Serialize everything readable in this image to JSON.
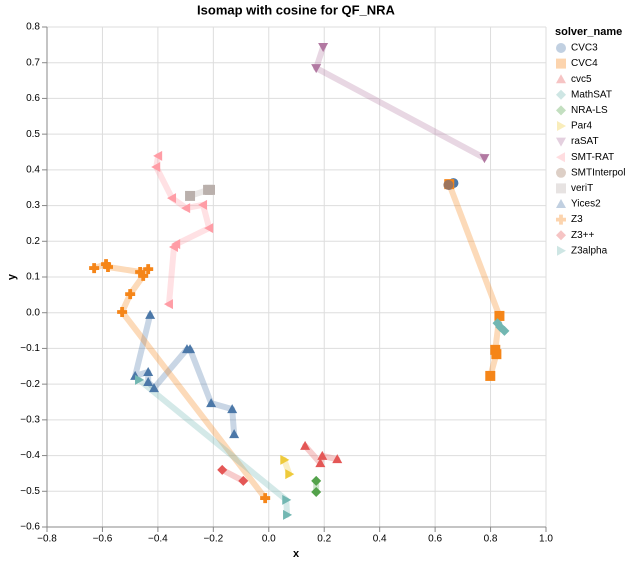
{
  "chart_data": {
    "type": "scatter",
    "title": "Isomap with cosine for QF_NRA",
    "x_label": "x",
    "y_label": "y",
    "legend_title": "solver_name",
    "grid": true,
    "legend": "right",
    "trail": true,
    "xlim": [
      -0.8,
      1.0
    ],
    "xticks": [
      {
        "value": -0.8,
        "label": "−0.8"
      },
      {
        "value": -0.6,
        "label": "−0.6"
      },
      {
        "value": -0.4,
        "label": "−0.4"
      },
      {
        "value": -0.2,
        "label": "−0.2"
      },
      {
        "value": 0,
        "label": "0.0"
      },
      0.2,
      0.4,
      0.6,
      0.8,
      {
        "value": 1,
        "label": "1.0"
      }
    ],
    "ylim": [
      -0.6,
      0.8
    ],
    "yticks": [
      {
        "value": -0.6,
        "label": "−0.6"
      },
      {
        "value": -0.5,
        "label": "−0.5"
      },
      {
        "value": -0.4,
        "label": "−0.4"
      },
      {
        "value": -0.3,
        "label": "−0.3"
      },
      {
        "value": -0.2,
        "label": "−0.2"
      },
      {
        "value": -0.1,
        "label": "−0.1"
      },
      {
        "value": 0,
        "label": "0.0"
      },
      0.1,
      0.2,
      0.3,
      0.4,
      0.5,
      0.6,
      0.7,
      0.8
    ],
    "series": [
      {
        "name": "CVC3",
        "color": "#4c78a8",
        "shape": "circle",
        "x": [
          0.651,
          0.666
        ],
        "values": [
          0.358,
          0.363
        ]
      },
      {
        "name": "CVC4",
        "color": "#f58518",
        "shape": "square",
        "x": [
          0.651,
          0.832,
          0.817,
          0.821,
          0.799
        ],
        "values": [
          0.36,
          -0.009,
          -0.104,
          -0.116,
          -0.177
        ]
      },
      {
        "name": "cvc5",
        "color": "#e45756",
        "shape": "triangle-up",
        "x": [
          0.131,
          0.186,
          0.193,
          0.247
        ],
        "values": [
          -0.373,
          -0.421,
          -0.401,
          -0.41
        ]
      },
      {
        "name": "MathSAT",
        "color": "#72b7b2",
        "shape": "diamond",
        "x": [
          0.825,
          0.835,
          0.85
        ],
        "values": [
          -0.029,
          -0.04,
          -0.051
        ]
      },
      {
        "name": "NRA-LS",
        "color": "#54a24b",
        "shape": "diamond",
        "x": [
          0.171,
          0.171
        ],
        "values": [
          -0.471,
          -0.502
        ]
      },
      {
        "name": "Par4",
        "color": "#eeca3b",
        "shape": "triangle-right",
        "x": [
          0.056,
          0.074
        ],
        "values": [
          -0.412,
          -0.452
        ]
      },
      {
        "name": "raSAT",
        "color": "#b279a2",
        "shape": "triangle-down",
        "x": [
          0.196,
          0.171,
          0.778
        ],
        "values": [
          0.744,
          0.685,
          0.433
        ]
      },
      {
        "name": "SMT-RAT",
        "color": "#ff9da6",
        "shape": "triangle-left",
        "x": [
          -0.399,
          -0.406,
          -0.349,
          -0.298,
          -0.237,
          -0.215,
          -0.334,
          -0.342,
          -0.36
        ],
        "values": [
          0.439,
          0.408,
          0.321,
          0.293,
          0.302,
          0.237,
          0.192,
          0.184,
          0.024
        ]
      },
      {
        "name": "SMTInterpol",
        "color": "#9d755d",
        "shape": "circle",
        "x": [
          0.648
        ],
        "values": [
          0.358
        ]
      },
      {
        "name": "veriT",
        "color": "#bab0ac",
        "shape": "square",
        "x": [
          -0.284,
          -0.219,
          -0.212
        ],
        "values": [
          0.327,
          0.344,
          0.344
        ]
      },
      {
        "name": "Yices2",
        "color": "#4c78a8",
        "shape": "triangle-up",
        "x": [
          -0.428,
          -0.482,
          -0.435,
          -0.435,
          -0.414,
          -0.295,
          -0.284,
          -0.208,
          -0.132,
          -0.125
        ],
        "values": [
          -0.006,
          -0.177,
          -0.166,
          -0.194,
          -0.211,
          -0.102,
          -0.102,
          -0.253,
          -0.27,
          -0.34
        ]
      },
      {
        "name": "Z3",
        "color": "#f58518",
        "shape": "cross",
        "x": [
          -0.63,
          -0.587,
          -0.58,
          -0.464,
          -0.435,
          -0.453,
          -0.5,
          -0.529,
          -0.013
        ],
        "values": [
          0.125,
          0.136,
          0.128,
          0.114,
          0.122,
          0.103,
          0.052,
          0.002,
          -0.519
        ]
      },
      {
        "name": "Z3++",
        "color": "#e45756",
        "shape": "diamond",
        "x": [
          -0.168,
          -0.092
        ],
        "values": [
          -0.44,
          -0.471
        ]
      },
      {
        "name": "Z3alpha",
        "color": "#72b7b2",
        "shape": "triangle-right",
        "x": [
          -0.468,
          0.063,
          0.066
        ],
        "values": [
          -0.188,
          -0.524,
          -0.566
        ]
      }
    ]
  }
}
